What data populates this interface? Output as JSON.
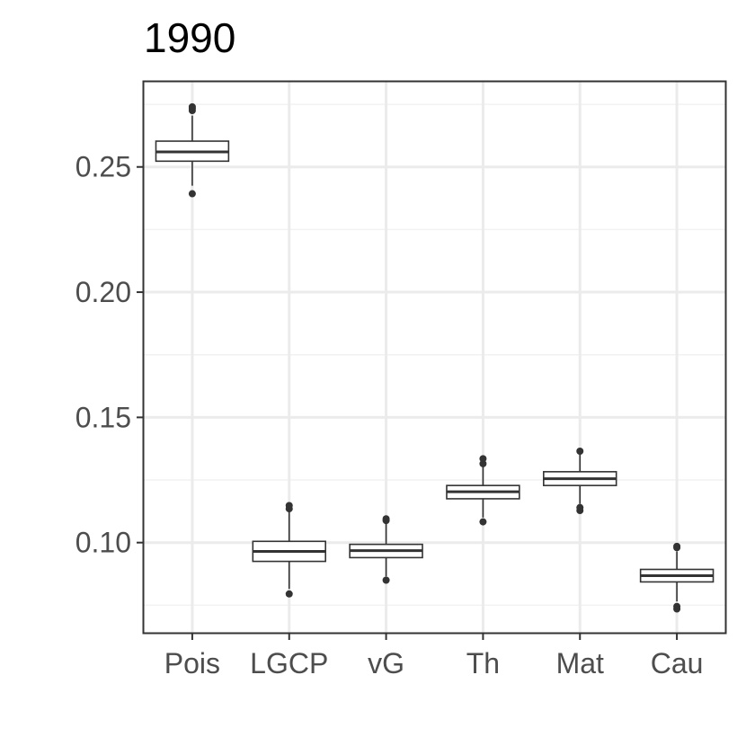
{
  "chart_data": {
    "type": "boxplot",
    "title": "1990",
    "xlabel": "",
    "ylabel": "",
    "categories": [
      "Pois",
      "LGCP",
      "vG",
      "Th",
      "Mat",
      "Cau"
    ],
    "y_ticks": [
      "0.10",
      "0.15",
      "0.20",
      "0.25"
    ],
    "ylim": [
      0.064,
      0.284
    ],
    "grid": true,
    "boxes": [
      {
        "name": "Pois",
        "q1": 0.2523,
        "median": 0.256,
        "q3": 0.2603,
        "whisker_low": 0.2425,
        "whisker_high": 0.2705,
        "outliers": [
          0.2393,
          0.2725,
          0.2733,
          0.274
        ]
      },
      {
        "name": "LGCP",
        "q1": 0.0925,
        "median": 0.0965,
        "q3": 0.1005,
        "whisker_low": 0.0815,
        "whisker_high": 0.1125,
        "outliers": [
          0.0795,
          0.1135,
          0.1148
        ]
      },
      {
        "name": "vG",
        "q1": 0.094,
        "median": 0.0968,
        "q3": 0.0993,
        "whisker_low": 0.0865,
        "whisker_high": 0.1075,
        "outliers": [
          0.085,
          0.1088,
          0.1095
        ]
      },
      {
        "name": "Th",
        "q1": 0.1175,
        "median": 0.1203,
        "q3": 0.1228,
        "whisker_low": 0.11,
        "whisker_high": 0.1305,
        "outliers": [
          0.1083,
          0.1315,
          0.1335
        ]
      },
      {
        "name": "Mat",
        "q1": 0.1228,
        "median": 0.1255,
        "q3": 0.1283,
        "whisker_low": 0.1155,
        "whisker_high": 0.1355,
        "outliers": [
          0.1128,
          0.114,
          0.1365
        ]
      },
      {
        "name": "Cau",
        "q1": 0.0843,
        "median": 0.0868,
        "q3": 0.0893,
        "whisker_low": 0.0765,
        "whisker_high": 0.0965,
        "outliers": [
          0.0735,
          0.0745,
          0.098,
          0.0985
        ]
      }
    ]
  }
}
